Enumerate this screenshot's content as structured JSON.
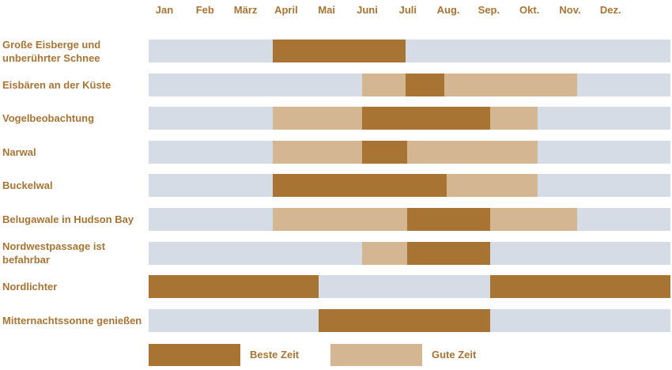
{
  "colors": {
    "best": "#a87434",
    "good": "#d4b692",
    "off": "#d6dce5",
    "text": "#a87434"
  },
  "chart_data": {
    "type": "gantt",
    "x_unit": "month (1 = start of January, 13 = end of December)",
    "months": [
      "Jan",
      "Feb",
      "März",
      "April",
      "Mai",
      "Juni",
      "Juli",
      "Aug.",
      "Sep.",
      "Okt.",
      "Nov.",
      "Dez."
    ],
    "legend": {
      "best_label": "Beste Zeit",
      "good_label": "Gute Zeit"
    },
    "rows": [
      {
        "label": "Große Eisberge und unberührter Schnee",
        "best": [
          [
            3.85,
            6.9
          ]
        ],
        "good": []
      },
      {
        "label": "Eisbären an der Küste",
        "best": [
          [
            6.9,
            7.8
          ]
        ],
        "good": [
          [
            5.9,
            6.9
          ],
          [
            7.8,
            10.85
          ]
        ]
      },
      {
        "label": "Vogelbeobachtung",
        "best": [
          [
            5.9,
            8.85
          ]
        ],
        "good": [
          [
            3.85,
            5.9
          ],
          [
            8.85,
            9.95
          ]
        ]
      },
      {
        "label": "Narwal",
        "best": [
          [
            5.9,
            6.95
          ]
        ],
        "good": [
          [
            3.85,
            5.9
          ],
          [
            6.95,
            9.95
          ]
        ]
      },
      {
        "label": "Buckelwal",
        "best": [
          [
            3.85,
            7.85
          ]
        ],
        "good": [
          [
            7.85,
            9.95
          ]
        ]
      },
      {
        "label": "Belugawale in Hudson Bay",
        "best": [
          [
            6.95,
            8.85
          ]
        ],
        "good": [
          [
            3.85,
            6.95
          ],
          [
            8.85,
            10.85
          ]
        ]
      },
      {
        "label": "Nordwestpassage ist befahrbar",
        "best": [
          [
            6.95,
            8.85
          ]
        ],
        "good": [
          [
            5.9,
            6.95
          ]
        ]
      },
      {
        "label": "Nordlichter",
        "best": [
          [
            1.0,
            4.9
          ],
          [
            8.85,
            13.0
          ]
        ],
        "good": []
      },
      {
        "label": "Mitternachtssonne genießen",
        "best": [
          [
            4.9,
            8.85
          ]
        ],
        "good": []
      }
    ]
  }
}
